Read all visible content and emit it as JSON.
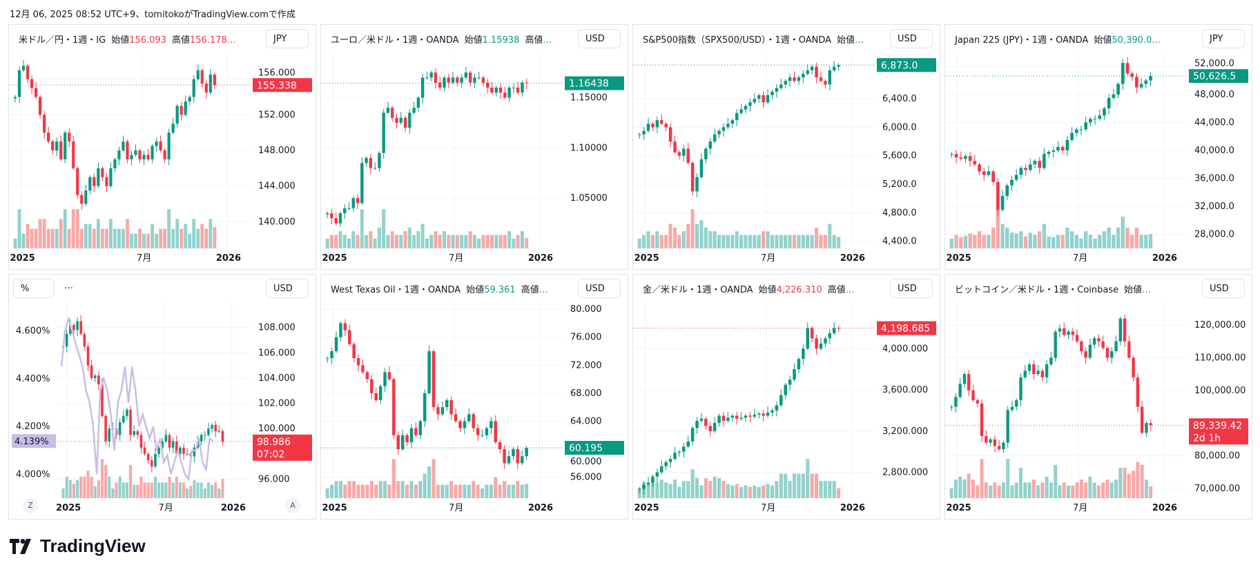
{
  "header_line": "12月 06, 2025 08:52 UTC+9、tomitokoがTradingView.comで作成",
  "logo_text": "TradingView",
  "colors": {
    "up": "#089981",
    "down": "#f23645",
    "up_vol": "#92d2cc",
    "down_vol": "#f7a9a7",
    "grid": "#f0f3fa",
    "overlay": "#c9bde6"
  },
  "x_ticks": [
    "2025",
    "7月",
    "2026"
  ],
  "chart_data": [
    {
      "type": "candlestick",
      "title": "米ドル／円・1週・IG",
      "open_label": "始値",
      "open_value": "156.093",
      "high_label": "高値",
      "high_value": "156.178…",
      "value_color": "#f23645",
      "currency": "JPY",
      "ylim": [
        137,
        159
      ],
      "y_ticks": [
        "140.000",
        "144.000",
        "148.000",
        "152.000",
        "156.000"
      ],
      "y_tick_values": [
        140,
        144,
        148,
        152,
        156
      ],
      "last_label": "155.338",
      "last_color": "#f23645",
      "closes": [
        154,
        157,
        157.5,
        156,
        155,
        154,
        152,
        150,
        149,
        148,
        149,
        147,
        150,
        149,
        146,
        143,
        142,
        143.5,
        145,
        144,
        146,
        145,
        144,
        146,
        147,
        148,
        149,
        147,
        147.5,
        148,
        147,
        147.5,
        147,
        148.5,
        149,
        148,
        147,
        150,
        151,
        153,
        152,
        153.5,
        154,
        156,
        157,
        155.5,
        154.5,
        156.5,
        155.338
      ]
    },
    {
      "type": "candlestick",
      "title": "ユーロ／米ドル・1週・OANDA",
      "open_label": "始値",
      "open_value": "1.15938",
      "high_label": "高値",
      "high_value": "…",
      "value_color": "#089981",
      "currency": "USD",
      "ylim": [
        1.0,
        1.195
      ],
      "y_ticks": [
        "1.05000",
        "1.10000",
        "1.15000"
      ],
      "y_tick_values": [
        1.05,
        1.1,
        1.15
      ],
      "last_label": "1.16438",
      "last_color": "#089981",
      "closes": [
        1.035,
        1.03,
        1.025,
        1.035,
        1.04,
        1.04,
        1.05,
        1.045,
        1.085,
        1.09,
        1.08,
        1.08,
        1.095,
        1.135,
        1.14,
        1.13,
        1.125,
        1.13,
        1.12,
        1.135,
        1.14,
        1.15,
        1.17,
        1.17,
        1.175,
        1.165,
        1.16,
        1.17,
        1.165,
        1.17,
        1.165,
        1.17,
        1.175,
        1.165,
        1.17,
        1.17,
        1.165,
        1.16,
        1.155,
        1.16,
        1.155,
        1.15,
        1.16,
        1.16,
        1.155,
        1.165,
        1.16438
      ]
    },
    {
      "type": "candlestick",
      "title": "S&P500指数（SPX500/USD）・1週・OANDA",
      "open_label": "始値",
      "open_value": "…",
      "high_label": "",
      "high_value": "",
      "value_color": "#089981",
      "currency": "USD",
      "ylim": [
        4300,
        7050
      ],
      "y_ticks": [
        "4,400.0",
        "4,800.0",
        "5,200.0",
        "5,600.0",
        "6,000.0",
        "6,400.0"
      ],
      "y_tick_values": [
        4400,
        4800,
        5200,
        5600,
        6000,
        6400
      ],
      "last_label": "6,873.0",
      "last_color": "#089981",
      "closes": [
        5900,
        5950,
        6050,
        6000,
        6100,
        6050,
        6000,
        5800,
        5650,
        5600,
        5700,
        5500,
        5100,
        5300,
        5550,
        5700,
        5800,
        5900,
        5950,
        6000,
        6050,
        6100,
        6200,
        6250,
        6300,
        6350,
        6400,
        6450,
        6350,
        6450,
        6500,
        6550,
        6600,
        6650,
        6700,
        6650,
        6700,
        6750,
        6800,
        6850,
        6700,
        6650,
        6600,
        6800,
        6850,
        6873
      ]
    },
    {
      "type": "candlestick",
      "title": "Japan 225 (JPY)・1週・OANDA",
      "open_label": "始値",
      "open_value": "50,390.0…",
      "high_label": "",
      "high_value": "",
      "value_color": "#089981",
      "currency": "JPY",
      "ylim": [
        26000,
        54000
      ],
      "y_ticks": [
        "28,000.0",
        "32,000.0",
        "36,000.0",
        "40,000.0",
        "44,000.0",
        "48,000.0",
        "52,000.0"
      ],
      "y_tick_values": [
        28000,
        32000,
        36000,
        40000,
        44000,
        48000,
        52000
      ],
      "last_label": "50,626.5",
      "last_color": "#089981",
      "closes": [
        39500,
        39000,
        38800,
        39200,
        38500,
        38000,
        37000,
        36500,
        37000,
        35500,
        31500,
        33500,
        35000,
        35800,
        36500,
        37500,
        37200,
        38000,
        38500,
        37500,
        39500,
        39800,
        40000,
        40500,
        40000,
        41500,
        42500,
        43000,
        43000,
        44000,
        44500,
        44500,
        45000,
        46000,
        47500,
        48000,
        49500,
        52500,
        51000,
        50500,
        49000,
        49500,
        50000,
        50626.5
      ]
    },
    {
      "type": "candlestick",
      "title": "",
      "currency": "USD",
      "left_unit": "%",
      "header_dots": "…",
      "ylim": [
        94.5,
        110
      ],
      "y_ticks": [
        "96.000",
        "100.000",
        "102.000",
        "104.000",
        "106.000",
        "108.000"
      ],
      "y_tick_values": [
        96,
        100,
        102,
        104,
        106,
        108
      ],
      "last_label": "98.986",
      "last_sub": "07:02",
      "last_color": "#f23645",
      "closes": [
        106.5,
        107.5,
        108.2,
        107.8,
        108.5,
        107.5,
        106.5,
        105,
        104,
        104.2,
        103.5,
        101,
        99,
        100,
        100,
        99.5,
        100.5,
        101,
        101.5,
        99.5,
        99.8,
        99.5,
        98.5,
        98,
        97.5,
        97,
        98,
        98.5,
        99,
        99.5,
        98.5,
        99,
        98,
        98.5,
        98,
        98,
        97.8,
        98.5,
        99,
        99.5,
        99.5,
        100,
        100.3,
        99.8,
        99.8,
        98.986
      ],
      "overlay": {
        "ylim": [
          3.9,
          4.72
        ],
        "y_ticks": [
          "4.000%",
          "4.200%",
          "4.400%",
          "4.600%"
        ],
        "y_tick_values": [
          4.0,
          4.2,
          4.4,
          4.6
        ],
        "last_label": "4.139%",
        "values": [
          4.45,
          4.6,
          4.65,
          4.6,
          4.55,
          4.5,
          4.45,
          4.35,
          4.3,
          4.2,
          4.0,
          4.35,
          4.4,
          4.35,
          4.25,
          4.1,
          4.3,
          4.35,
          4.45,
          4.3,
          4.45,
          4.35,
          4.2,
          4.25,
          4.2,
          4.15,
          4.2,
          4.1,
          4.15,
          4.05,
          4.08,
          4.0,
          4.05,
          4.1,
          4.05,
          4.0,
          3.98,
          4.1,
          4.1,
          4.15,
          4.05,
          4.02,
          4.15,
          4.139
        ]
      },
      "z_label": "Z",
      "a_label": "A"
    },
    {
      "type": "candlestick",
      "title": "West Texas Oil・1週・OANDA",
      "open_label": "始値",
      "open_value": "59.361",
      "high_label": "高値",
      "high_value": "…",
      "value_color": "#089981",
      "currency": "USD",
      "ylim": [
        53,
        81
      ],
      "y_ticks": [
        "56.000",
        "60.000",
        "64.000",
        "68.000",
        "72.000",
        "76.000",
        "80.000"
      ],
      "y_tick_values": [
        56,
        60,
        64,
        68,
        72,
        76,
        80
      ],
      "last_label": "60.195",
      "last_color": "#089981",
      "closes": [
        73,
        74,
        76,
        78,
        77,
        75,
        73,
        72,
        71,
        70,
        68,
        67,
        69,
        71,
        70,
        62,
        60,
        62,
        61,
        63,
        62,
        64,
        68,
        74,
        66,
        65,
        66,
        67,
        65,
        64,
        63,
        64,
        65,
        63,
        62,
        62,
        63,
        64,
        61,
        60,
        58,
        59,
        60,
        58,
        59,
        60.195
      ]
    },
    {
      "type": "candlestick",
      "title": "金／米ドル・1週・OANDA",
      "open_label": "始値",
      "open_value": "4,226.310",
      "high_label": "高値",
      "high_value": "…",
      "value_color": "#f23645",
      "currency": "USD",
      "ylim": [
        2550,
        4450
      ],
      "y_ticks": [
        "2,800.000",
        "3,200.000",
        "3,600.000",
        "4,000.000"
      ],
      "y_tick_values": [
        2800,
        3200,
        3600,
        4000
      ],
      "last_label": "4,198.685",
      "last_color": "#f23645",
      "closes": [
        2640,
        2680,
        2700,
        2760,
        2800,
        2860,
        2900,
        2930,
        2990,
        3000,
        3050,
        3100,
        3230,
        3300,
        3320,
        3250,
        3200,
        3280,
        3350,
        3300,
        3330,
        3350,
        3320,
        3330,
        3350,
        3340,
        3360,
        3370,
        3350,
        3380,
        3400,
        3450,
        3550,
        3650,
        3700,
        3800,
        3900,
        4000,
        4200,
        4100,
        4000,
        4050,
        4100,
        4150,
        4200,
        4198.685
      ]
    },
    {
      "type": "candlestick",
      "title": "ビットコイン／米ドル・1週・Coinbase",
      "open_label": "始値",
      "open_value": "…",
      "high_label": "",
      "high_value": "",
      "value_color": "#f23645",
      "currency": "USD",
      "ylim": [
        67000,
        127000
      ],
      "y_ticks": [
        "70,000.00",
        "80,000.00",
        "100,000.00",
        "110,000.00",
        "120,000.00"
      ],
      "y_tick_values": [
        70000,
        80000,
        100000,
        110000,
        120000
      ],
      "last_label": "89,339.42",
      "last_sub": "2d 1h",
      "last_color": "#f23645",
      "closes": [
        95000,
        98000,
        102000,
        105000,
        100000,
        97000,
        96000,
        86000,
        84000,
        85000,
        83000,
        82000,
        84000,
        94000,
        95000,
        97000,
        104000,
        106000,
        108000,
        105000,
        106000,
        104000,
        108000,
        110000,
        118000,
        119000,
        117000,
        118000,
        117000,
        115000,
        112000,
        110000,
        114000,
        116000,
        115000,
        113000,
        110000,
        112000,
        115000,
        122000,
        115000,
        110000,
        104000,
        95000,
        87000,
        90000,
        89339.42
      ]
    }
  ]
}
